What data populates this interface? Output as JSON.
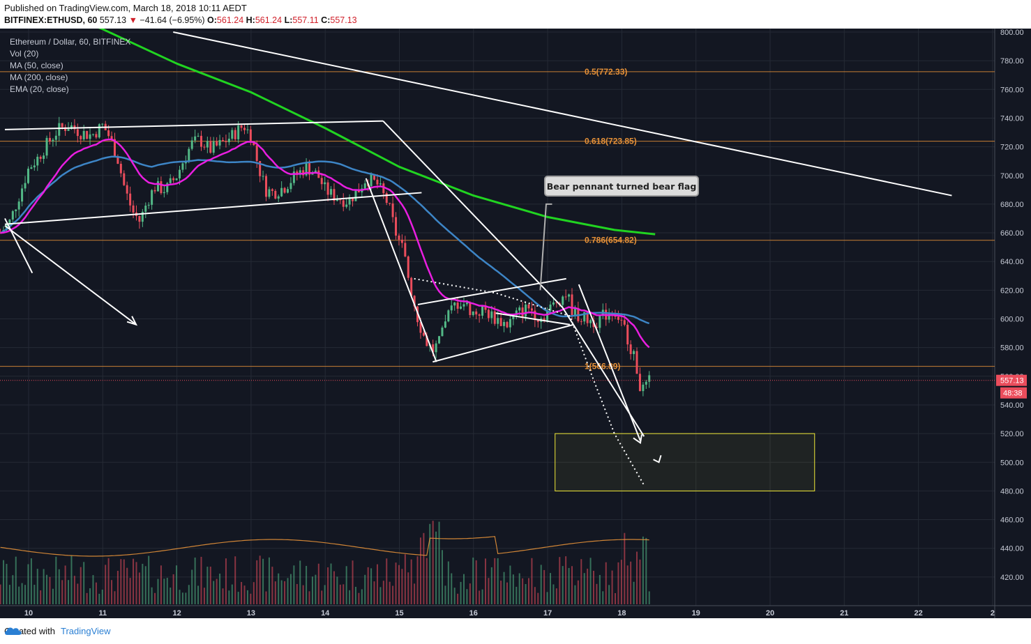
{
  "published": "Published on TradingView.com, March 18, 2018 10:11 AEDT",
  "quote": {
    "symbol": "BITFINEX:ETHUSD, 60",
    "last": "557.13",
    "change": "−41.64 (−6.95%)",
    "o_label": "O:",
    "o": "561.24",
    "h_label": "H:",
    "h": "561.24",
    "l_label": "L:",
    "l": "557.11",
    "c_label": "C:",
    "c": "557.13"
  },
  "legend": {
    "title": "Ethereum / Dollar, 60, BITFINEX",
    "vol": "Vol (20)",
    "ma50": "MA (50, close)",
    "ma200": "MA (200, close)",
    "ema20": "EMA (20, close)"
  },
  "callout": "Bear pennant turned bear flag",
  "last_price_tag": "557.13",
  "countdown_tag": "48:38",
  "footer": {
    "created_with": "Created with",
    "brand": "TradingView"
  },
  "colors": {
    "background": "#131722",
    "up": "#53b987",
    "down": "#eb4d5c",
    "ma50": "#3d85c6",
    "ma200": "#21d421",
    "ema20": "#e91ee0",
    "fib": "#e69138",
    "box": "#f1ea38",
    "trend": "#ffffff"
  },
  "chart_data": {
    "type": "candlestick",
    "title": "Ethereum / Dollar, 60, BITFINEX",
    "x_ticks": [
      "10",
      "11",
      "12",
      "13",
      "14",
      "15",
      "16",
      "17",
      "18",
      "19",
      "20",
      "21",
      "22",
      "2"
    ],
    "y_ticks": [
      800,
      780,
      760,
      740,
      720,
      700,
      680,
      660,
      640,
      620,
      600,
      580,
      560,
      540,
      520,
      500,
      480,
      460,
      440,
      420
    ],
    "ylim": [
      404,
      804
    ],
    "fib_levels": [
      {
        "label": "0.5(772.33)",
        "value": 772.33
      },
      {
        "label": "0.618(723.85)",
        "value": 723.85
      },
      {
        "label": "0.786(654.82)",
        "value": 654.82
      },
      {
        "label": "1(566.89)",
        "value": 566.89
      }
    ],
    "target_zone": {
      "from_day": 17.1,
      "to_day": 20.6,
      "low": 480,
      "high": 520
    },
    "price_path": [
      [
        9.62,
        660
      ],
      [
        9.75,
        668
      ],
      [
        9.9,
        690
      ],
      [
        10.0,
        705
      ],
      [
        10.12,
        712
      ],
      [
        10.25,
        722
      ],
      [
        10.4,
        732
      ],
      [
        10.55,
        735
      ],
      [
        10.7,
        730
      ],
      [
        10.85,
        728
      ],
      [
        11.0,
        735
      ],
      [
        11.1,
        726
      ],
      [
        11.2,
        712
      ],
      [
        11.3,
        690
      ],
      [
        11.4,
        675
      ],
      [
        11.5,
        668
      ],
      [
        11.6,
        682
      ],
      [
        11.7,
        692
      ],
      [
        11.85,
        690
      ],
      [
        12.0,
        700
      ],
      [
        12.1,
        712
      ],
      [
        12.2,
        722
      ],
      [
        12.3,
        725
      ],
      [
        12.45,
        718
      ],
      [
        12.6,
        722
      ],
      [
        12.75,
        728
      ],
      [
        12.9,
        735
      ],
      [
        13.0,
        728
      ],
      [
        13.1,
        706
      ],
      [
        13.2,
        690
      ],
      [
        13.3,
        688
      ],
      [
        13.45,
        692
      ],
      [
        13.6,
        700
      ],
      [
        13.75,
        706
      ],
      [
        13.9,
        700
      ],
      [
        14.0,
        690
      ],
      [
        14.1,
        686
      ],
      [
        14.2,
        684
      ],
      [
        14.3,
        682
      ],
      [
        14.45,
        690
      ],
      [
        14.55,
        698
      ],
      [
        14.7,
        694
      ],
      [
        14.85,
        680
      ],
      [
        14.95,
        660
      ],
      [
        15.05,
        648
      ],
      [
        15.15,
        622
      ],
      [
        15.25,
        600
      ],
      [
        15.35,
        585
      ],
      [
        15.45,
        578
      ],
      [
        15.55,
        584
      ],
      [
        15.65,
        602
      ],
      [
        15.75,
        610
      ],
      [
        15.85,
        612
      ],
      [
        16.0,
        604
      ],
      [
        16.15,
        606
      ],
      [
        16.3,
        600
      ],
      [
        16.45,
        596
      ],
      [
        16.6,
        604
      ],
      [
        16.75,
        608
      ],
      [
        16.9,
        600
      ],
      [
        17.05,
        608
      ],
      [
        17.15,
        614
      ],
      [
        17.25,
        618
      ],
      [
        17.35,
        604
      ],
      [
        17.5,
        600
      ],
      [
        17.65,
        598
      ],
      [
        17.8,
        604
      ],
      [
        17.9,
        606
      ],
      [
        18.0,
        598
      ],
      [
        18.1,
        584
      ],
      [
        18.2,
        566
      ],
      [
        18.27,
        548
      ],
      [
        18.32,
        552
      ],
      [
        18.38,
        557
      ]
    ],
    "volume_note": "Vol (20) histogram with orange volume MA"
  }
}
